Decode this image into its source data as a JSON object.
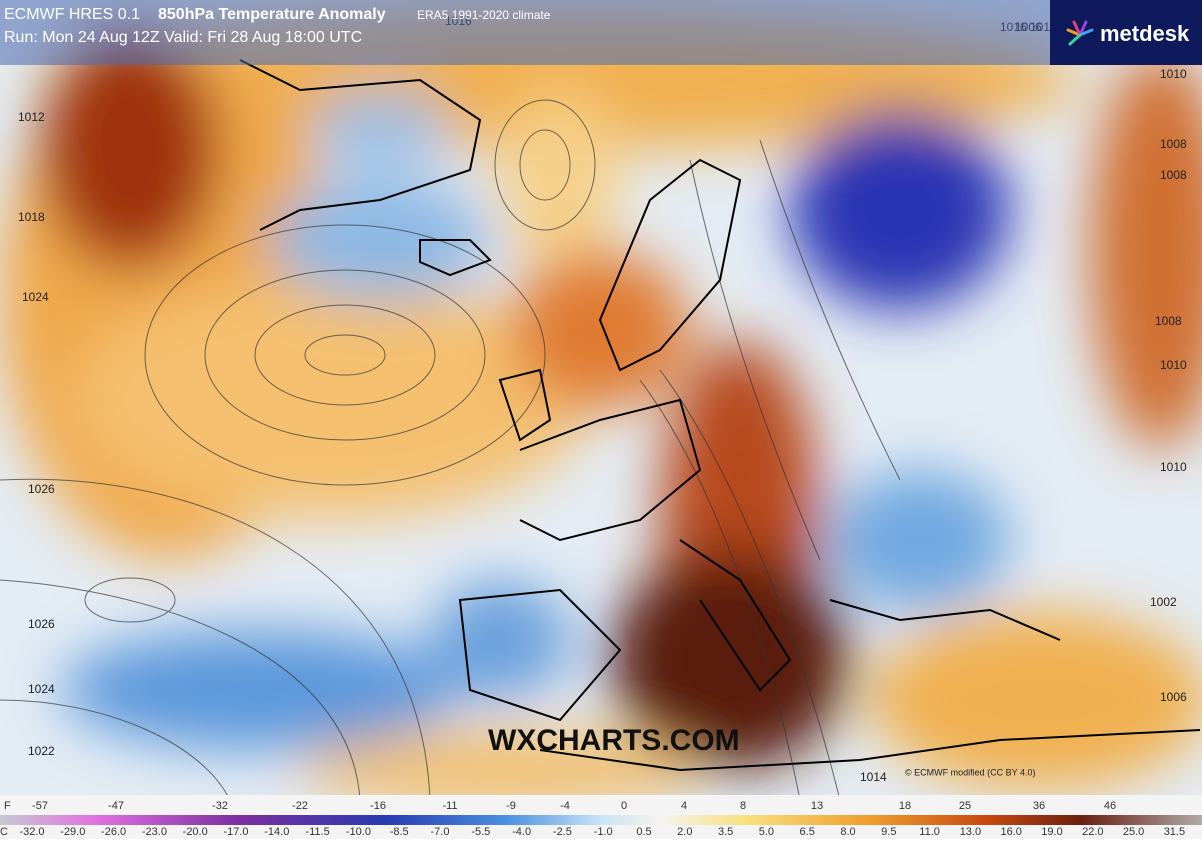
{
  "header": {
    "model": "ECMWF HRES 0.1",
    "product": "850hPa Temperature Anomaly",
    "climate": "ERA5 1991-2020 climate",
    "run": "Run: Mon 24 Aug 12Z Valid: Fri 28 Aug 18:00 UTC"
  },
  "logo": "metdesk",
  "watermark": "WXCHARTS.COM",
  "credit": "© ECMWF  modified (CC BY 4.0)",
  "isobar_labels": [
    "1016",
    "1018",
    "1006",
    "1012",
    "1018",
    "1024",
    "1026",
    "1026",
    "1024",
    "1022",
    "1010",
    "1008",
    "1008",
    "1008",
    "1010",
    "1010",
    "1002",
    "1006",
    "1016",
    "1014"
  ],
  "colorbar": {
    "f_unit": "F",
    "f_labels": [
      "-57",
      "-47",
      "-32",
      "-22",
      "-16",
      "-11",
      "-9",
      "-4",
      "0",
      "4",
      "8",
      "13",
      "18",
      "25",
      "36",
      "46"
    ],
    "c_unit": "C",
    "c_labels": [
      "-32.0",
      "-29.0",
      "-26.0",
      "-23.0",
      "-20.0",
      "-17.0",
      "-14.0",
      "-11.5",
      "-10.0",
      "-8.5",
      "-7.0",
      "-5.5",
      "-4.0",
      "-2.5",
      "-1.0",
      "0.5",
      "2.0",
      "3.5",
      "5.0",
      "6.5",
      "8.0",
      "9.5",
      "11.0",
      "13.0",
      "16.0",
      "19.0",
      "22.0",
      "25.0",
      "31.5"
    ]
  }
}
